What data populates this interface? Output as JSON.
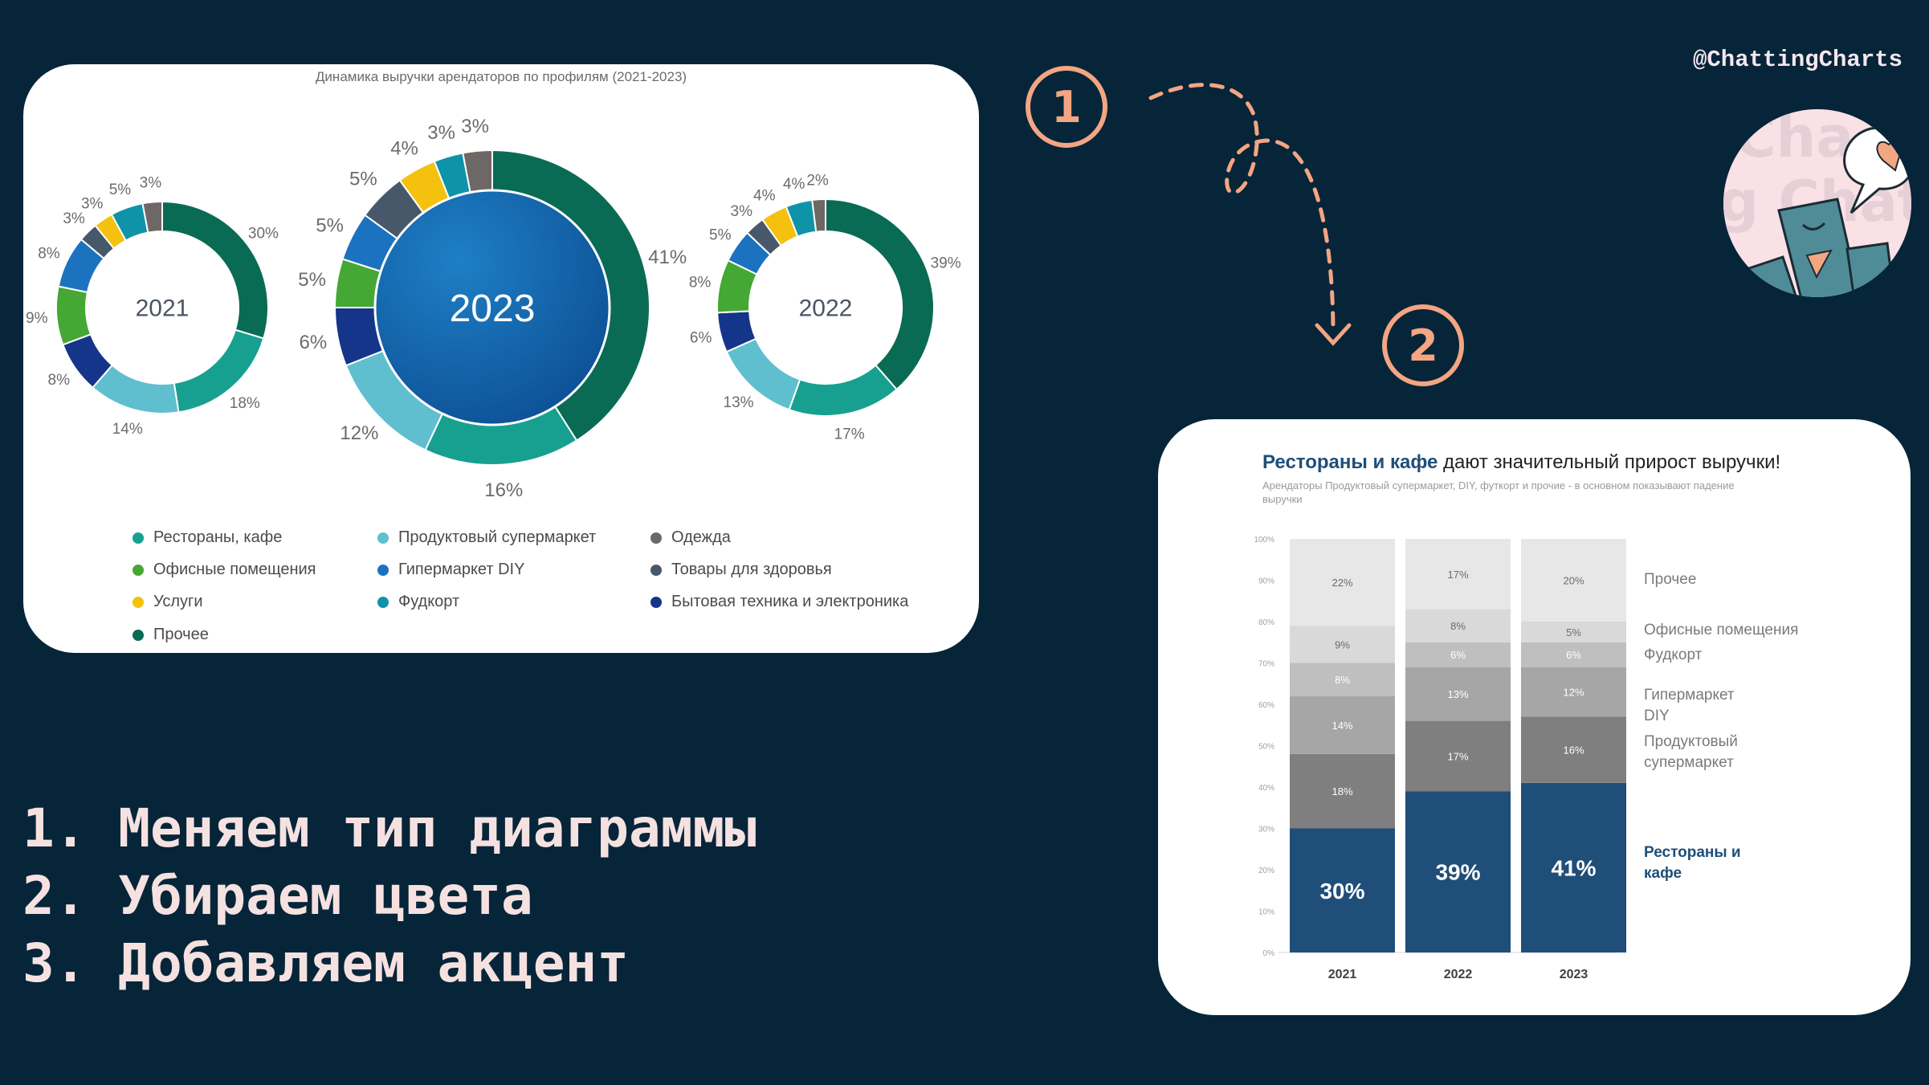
{
  "handle": "@ChattingCharts",
  "badges": [
    "1",
    "2"
  ],
  "steps": [
    "1. Меняем тип диаграммы",
    "2. Убираем цвета",
    "3. Добавляем акцент"
  ],
  "colors": {
    "background": "#062539",
    "accent": "#f4a582",
    "bar_accent": "#1f4e79"
  },
  "left_card": {
    "title": "Динамика выручки арендаторов по профилям (2021-2023)",
    "legend": [
      {
        "label": "Рестораны, кафе",
        "color": "#17a090"
      },
      {
        "label": "Продуктовый супермаркет",
        "color": "#5fbfcf"
      },
      {
        "label": "Одежда",
        "color": "#6d6766"
      },
      {
        "label": "Офисные помещения",
        "color": "#45a734"
      },
      {
        "label": "Гипермаркет DIY",
        "color": "#1b73bf"
      },
      {
        "label": "Товары для здоровья",
        "color": "#48586b"
      },
      {
        "label": "Услуги",
        "color": "#f4c10f"
      },
      {
        "label": "Фудкорт",
        "color": "#0e93a8"
      },
      {
        "label": "Бытовая техника и электроника",
        "color": "#15358a"
      },
      {
        "label": "Прочее",
        "color": "#0a6b55"
      }
    ]
  },
  "right_card": {
    "title_accent": "Рестораны и кафе",
    "title_rest": " дают значительный прирост выручки!",
    "subtitle": "Арендаторы Продуктовый супермаркет, DIY, футкорт и прочие - в основном показывают падение выручки"
  },
  "chart_data": [
    {
      "type": "pie",
      "label": "2021",
      "slice_colors": [
        "#0a6b55",
        "#17a090",
        "#5fbfcf",
        "#15358a",
        "#45a734",
        "#1b73bf",
        "#48586b",
        "#f4c10f",
        "#0e93a8",
        "#6d6766"
      ],
      "values": [
        30,
        18,
        14,
        8,
        9,
        8,
        3,
        3,
        5,
        3
      ],
      "labels": [
        "30%",
        "18%",
        "14%",
        "8%",
        "9%",
        "8%",
        "3%",
        "3%",
        "5%",
        "3%"
      ]
    },
    {
      "type": "pie",
      "label": "2023",
      "slice_colors": [
        "#0a6b55",
        "#17a090",
        "#5fbfcf",
        "#15358a",
        "#45a734",
        "#1b73bf",
        "#48586b",
        "#f4c10f",
        "#0e93a8",
        "#6d6766"
      ],
      "values": [
        41,
        16,
        12,
        6,
        5,
        5,
        5,
        4,
        3,
        3
      ],
      "labels": [
        "41%",
        "16%",
        "12%",
        "6%",
        "5%",
        "5%",
        "5%",
        "4%",
        "3%",
        "3%"
      ]
    },
    {
      "type": "pie",
      "label": "2022",
      "slice_colors": [
        "#0a6b55",
        "#17a090",
        "#5fbfcf",
        "#15358a",
        "#45a734",
        "#1b73bf",
        "#48586b",
        "#f4c10f",
        "#0e93a8",
        "#6d6766"
      ],
      "values": [
        39,
        17,
        13,
        6,
        8,
        5,
        3,
        4,
        4,
        2
      ],
      "labels": [
        "39%",
        "17%",
        "13%",
        "6%",
        "8%",
        "5%",
        "3%",
        "4%",
        "4%",
        "2%"
      ]
    },
    {
      "type": "bar",
      "stacked": true,
      "categories": [
        "2021",
        "2022",
        "2023"
      ],
      "ylim": [
        0,
        100
      ],
      "yticks": [
        "0%",
        "10%",
        "20%",
        "30%",
        "40%",
        "50%",
        "60%",
        "70%",
        "80%",
        "90%",
        "100%"
      ],
      "series": [
        {
          "name": "Рестораны и кафе",
          "values": [
            30,
            39,
            41
          ],
          "color": "#1f4e79",
          "label_color": "#ffffff"
        },
        {
          "name": "Продуктовый супермаркет",
          "values": [
            18,
            17,
            16
          ],
          "color": "#7f7f7f",
          "label_color": "#ffffff"
        },
        {
          "name": "Гипермаркет DIY",
          "values": [
            14,
            13,
            12
          ],
          "color": "#a6a6a6",
          "label_color": "#ffffff"
        },
        {
          "name": "Фудкорт",
          "values": [
            8,
            6,
            6
          ],
          "color": "#bfbfbf",
          "label_color": "#ffffff"
        },
        {
          "name": "Офисные помещения",
          "values": [
            9,
            8,
            5
          ],
          "color": "#d9d9d9",
          "label_color": "#6b6b6b"
        },
        {
          "name": "Прочее",
          "values": [
            22,
            17,
            20
          ],
          "color": "#e7e7e7",
          "label_color": "#6b6b6b"
        }
      ]
    }
  ]
}
